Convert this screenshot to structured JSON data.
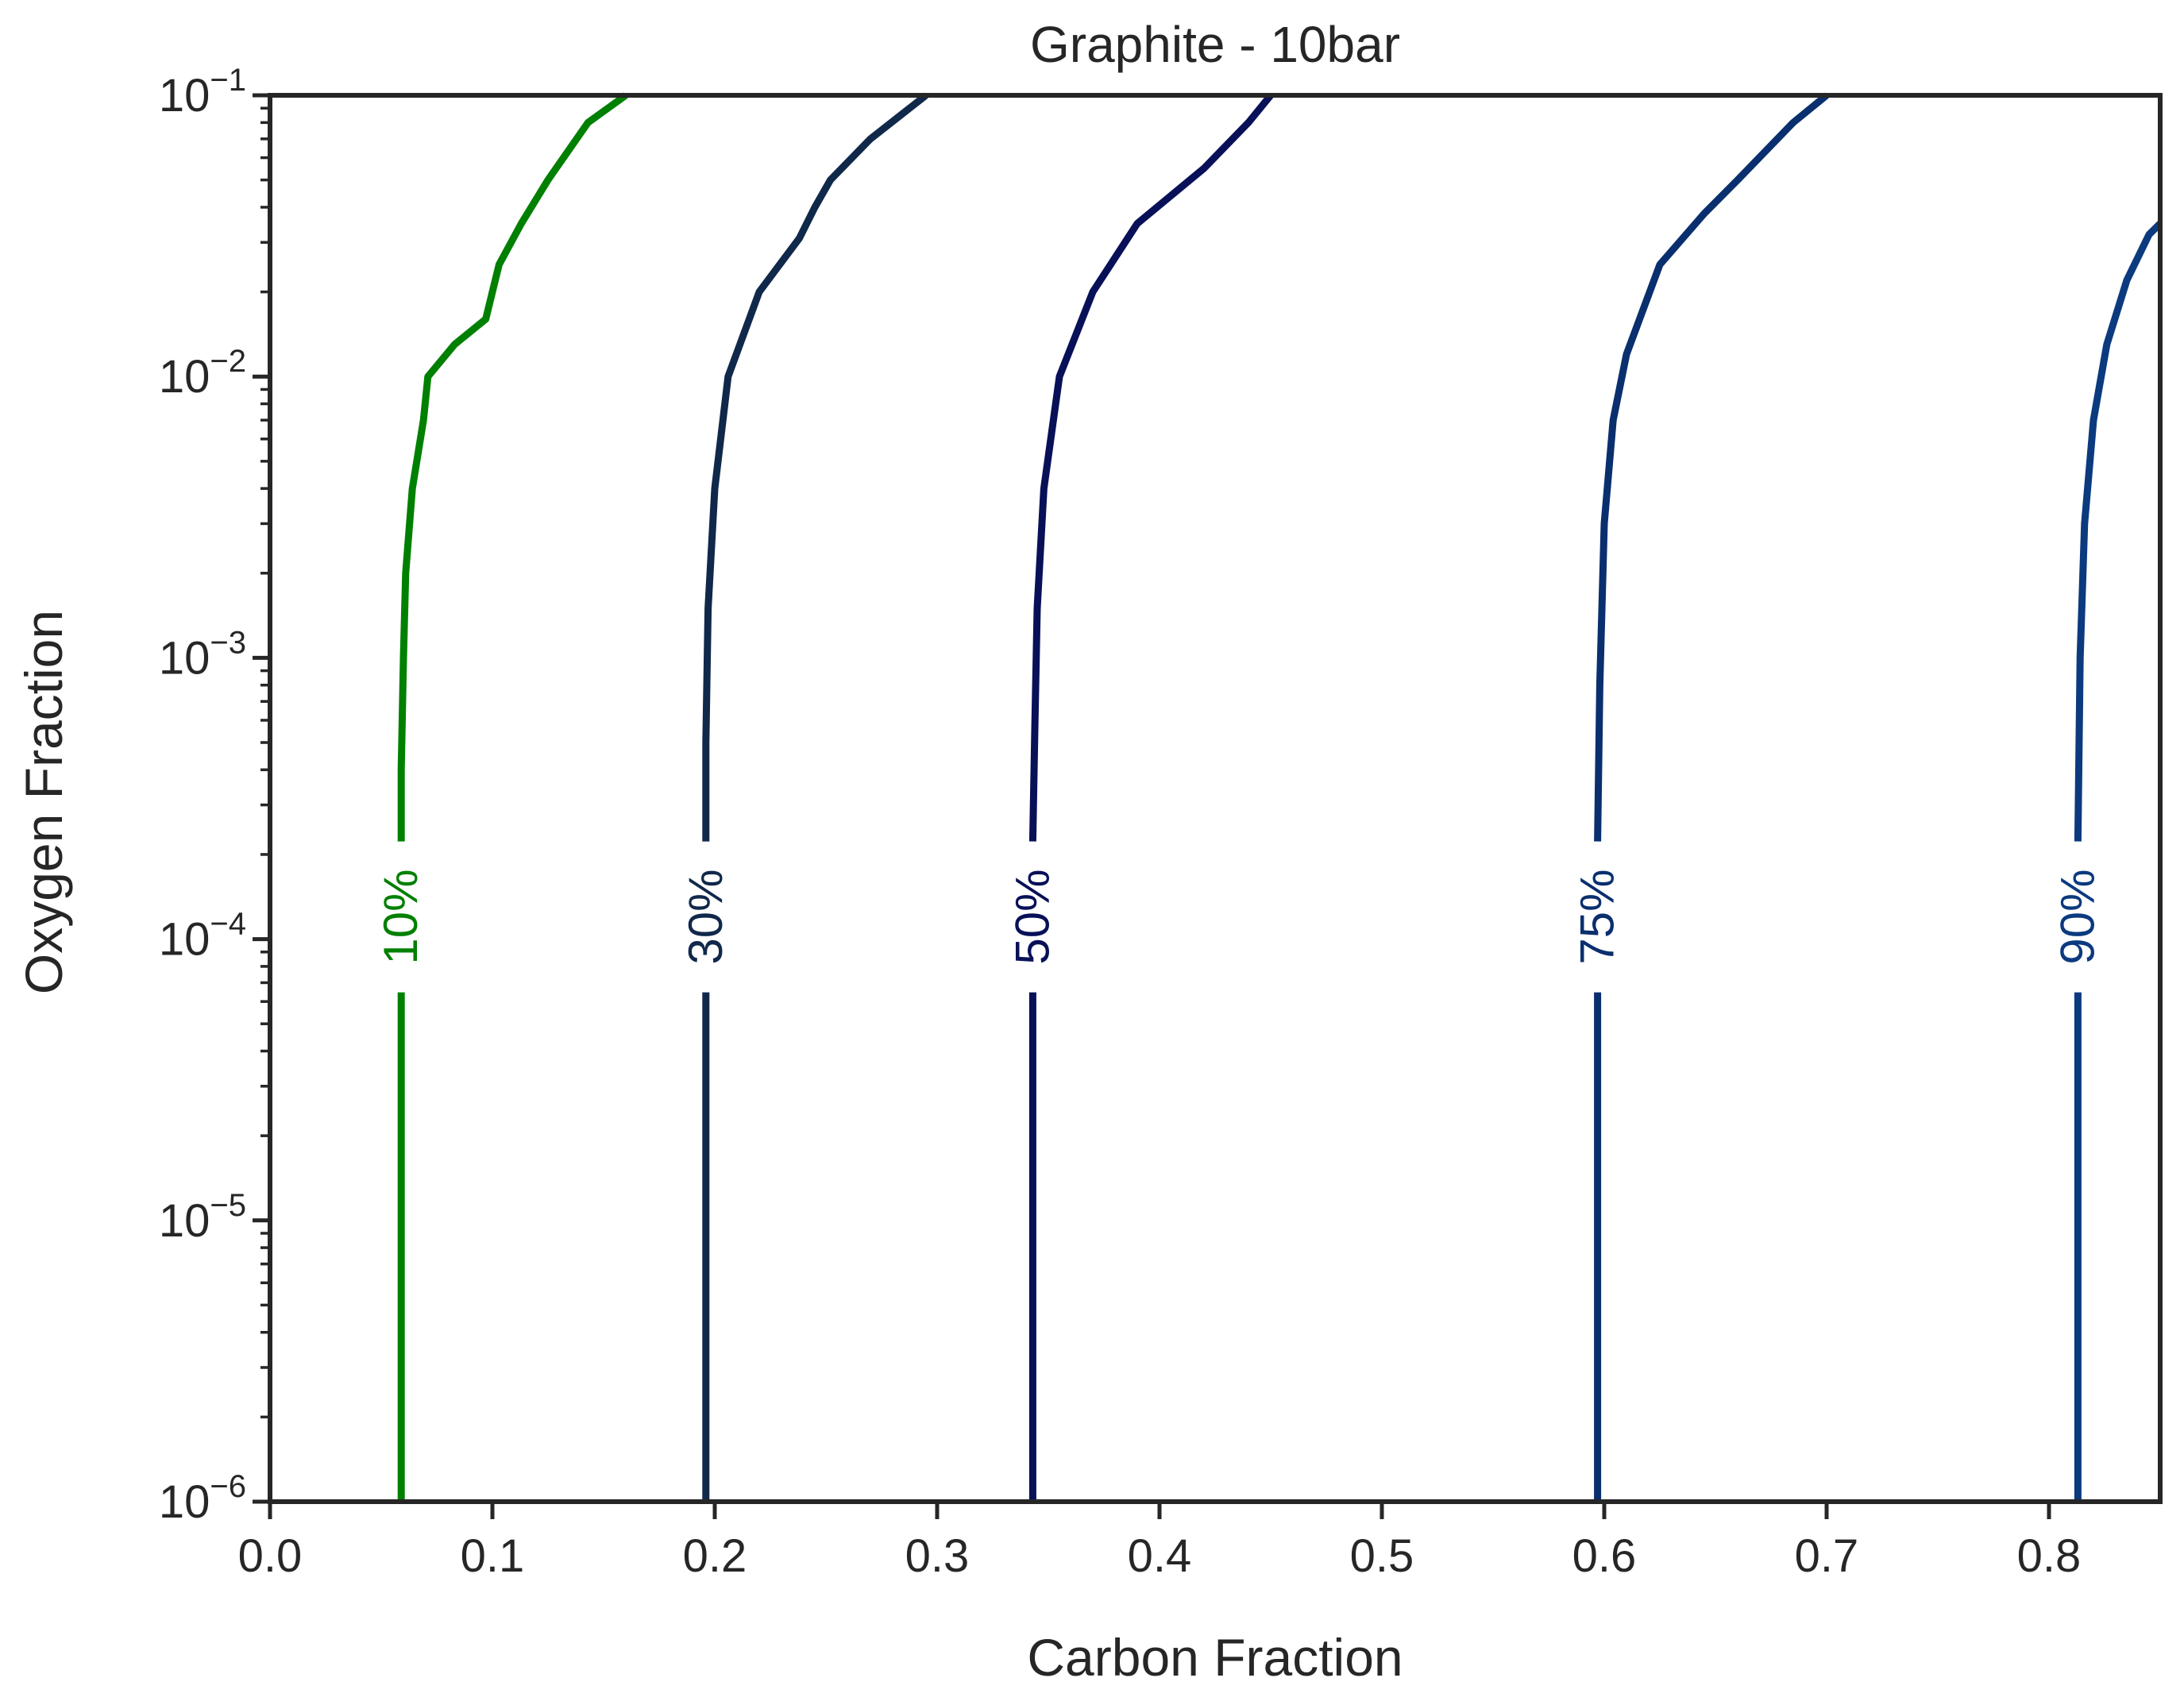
{
  "chart_data": {
    "type": "line",
    "title": "Graphite - 10bar",
    "xlabel": "Carbon Fraction",
    "ylabel": "Oxygen Fraction",
    "xlim": [
      0.0,
      0.85
    ],
    "ylim": [
      1e-06,
      0.1
    ],
    "yscale": "log",
    "grid": false,
    "x_ticks": [
      "0.0",
      "0.1",
      "0.2",
      "0.3",
      "0.4",
      "0.5",
      "0.6",
      "0.7",
      "0.8"
    ],
    "y_ticks": [
      {
        "base": "10",
        "exp": "−6"
      },
      {
        "base": "10",
        "exp": "−5"
      },
      {
        "base": "10",
        "exp": "−4"
      },
      {
        "base": "10",
        "exp": "−3"
      },
      {
        "base": "10",
        "exp": "−2"
      },
      {
        "base": "10",
        "exp": "−1"
      }
    ],
    "series": [
      {
        "name": "10%",
        "color": "#008000",
        "label_at": [
          0.059,
          0.00012
        ],
        "points": [
          [
            0.059,
            1e-06
          ],
          [
            0.059,
            0.0001
          ],
          [
            0.059,
            0.0004
          ],
          [
            0.06,
            0.001
          ],
          [
            0.061,
            0.002
          ],
          [
            0.064,
            0.004
          ],
          [
            0.069,
            0.007
          ],
          [
            0.071,
            0.01
          ],
          [
            0.083,
            0.013
          ],
          [
            0.097,
            0.016
          ],
          [
            0.103,
            0.025
          ],
          [
            0.113,
            0.035
          ],
          [
            0.125,
            0.05
          ],
          [
            0.143,
            0.08
          ],
          [
            0.16,
            0.1
          ]
        ]
      },
      {
        "name": "30%",
        "color": "#10284a",
        "label_at": [
          0.196,
          0.00012
        ],
        "points": [
          [
            0.196,
            1e-06
          ],
          [
            0.196,
            0.0001
          ],
          [
            0.196,
            0.0005
          ],
          [
            0.197,
            0.0015
          ],
          [
            0.2,
            0.004
          ],
          [
            0.206,
            0.01
          ],
          [
            0.22,
            0.02
          ],
          [
            0.238,
            0.031
          ],
          [
            0.245,
            0.04
          ],
          [
            0.252,
            0.05
          ],
          [
            0.27,
            0.07
          ],
          [
            0.295,
            0.1
          ]
        ]
      },
      {
        "name": "50%",
        "color": "#081058",
        "label_at": [
          0.343,
          0.00012
        ],
        "points": [
          [
            0.343,
            1e-06
          ],
          [
            0.343,
            0.0001
          ],
          [
            0.344,
            0.0006
          ],
          [
            0.345,
            0.0015
          ],
          [
            0.348,
            0.004
          ],
          [
            0.355,
            0.01
          ],
          [
            0.37,
            0.02
          ],
          [
            0.39,
            0.035
          ],
          [
            0.42,
            0.055
          ],
          [
            0.44,
            0.08
          ],
          [
            0.45,
            0.1
          ]
        ]
      },
      {
        "name": "75%",
        "color": "#0a2f6e",
        "label_at": [
          0.597,
          0.00012
        ],
        "points": [
          [
            0.597,
            1e-06
          ],
          [
            0.597,
            0.0001
          ],
          [
            0.598,
            0.0008
          ],
          [
            0.6,
            0.003
          ],
          [
            0.604,
            0.007
          ],
          [
            0.61,
            0.012
          ],
          [
            0.625,
            0.025
          ],
          [
            0.645,
            0.038
          ],
          [
            0.66,
            0.05
          ],
          [
            0.685,
            0.08
          ],
          [
            0.7,
            0.1
          ]
        ]
      },
      {
        "name": "90%",
        "color": "#0b3a7e",
        "label_at": [
          0.813,
          0.00012
        ],
        "points": [
          [
            0.813,
            1e-06
          ],
          [
            0.813,
            0.0001
          ],
          [
            0.814,
            0.001
          ],
          [
            0.816,
            0.003
          ],
          [
            0.82,
            0.007
          ],
          [
            0.826,
            0.013
          ],
          [
            0.835,
            0.022
          ],
          [
            0.845,
            0.032
          ],
          [
            0.85,
            0.035
          ]
        ]
      }
    ]
  }
}
